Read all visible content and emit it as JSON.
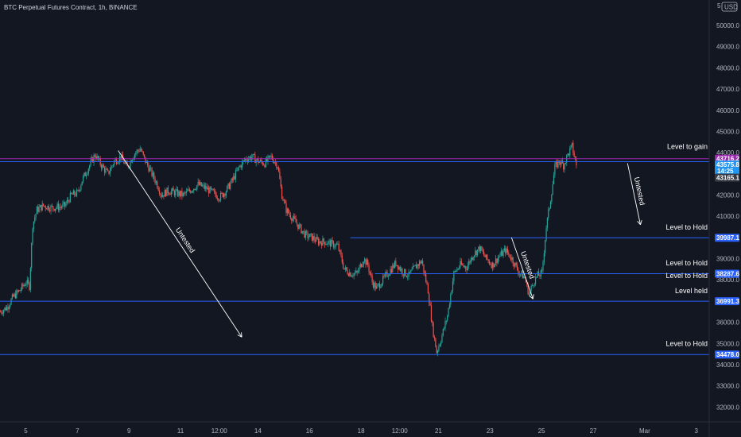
{
  "chart_data": {
    "type": "candlestick",
    "title": "BTC Perpetual Futures Contract, 1h, BINANCE",
    "currency_label": "USD",
    "price_scale_marker": "5",
    "ylim": [
      31300,
      51200
    ],
    "y_ticks": [
      32000,
      33000,
      34000,
      35000,
      36000,
      37000,
      38000,
      39000,
      40000,
      41000,
      42000,
      43000,
      44000,
      45000,
      46000,
      47000,
      48000,
      49000,
      50000
    ],
    "y_tick_labels": [
      "32000.0",
      "33000.0",
      "34000.0",
      "35000.0",
      "36000.0",
      "37000.0",
      "38000.0",
      "39000.0",
      "40000.0",
      "41000.0",
      "42000.0",
      "43000.0",
      "44000.0",
      "45000.0",
      "46000.0",
      "47000.0",
      "48000.0",
      "49000.0",
      "50000.0"
    ],
    "x_range_hours": [
      0,
      660
    ],
    "x_ticks": [
      {
        "label": "5",
        "hour": 24
      },
      {
        "label": "7",
        "hour": 72
      },
      {
        "label": "9",
        "hour": 120
      },
      {
        "label": "11",
        "hour": 168
      },
      {
        "label": "12:00",
        "hour": 204
      },
      {
        "label": "14",
        "hour": 240
      },
      {
        "label": "16",
        "hour": 288
      },
      {
        "label": "18",
        "hour": 336
      },
      {
        "label": "12:00",
        "hour": 372
      },
      {
        "label": "21",
        "hour": 408
      },
      {
        "label": "23",
        "hour": 456
      },
      {
        "label": "25",
        "hour": 504
      },
      {
        "label": "27",
        "hour": 552
      },
      {
        "label": "Mar",
        "hour": 600
      },
      {
        "label": "3",
        "hour": 648
      }
    ],
    "price_path": [
      [
        0,
        36500
      ],
      [
        6,
        36700
      ],
      [
        12,
        37200
      ],
      [
        18,
        37500
      ],
      [
        24,
        37900
      ],
      [
        27,
        37700
      ],
      [
        30,
        40600
      ],
      [
        34,
        41300
      ],
      [
        40,
        41500
      ],
      [
        48,
        41400
      ],
      [
        56,
        41450
      ],
      [
        60,
        41500
      ],
      [
        66,
        42000
      ],
      [
        72,
        42100
      ],
      [
        76,
        42700
      ],
      [
        82,
        43300
      ],
      [
        88,
        43900
      ],
      [
        94,
        43400
      ],
      [
        100,
        43000
      ],
      [
        106,
        43600
      ],
      [
        112,
        43800
      ],
      [
        118,
        43300
      ],
      [
        124,
        43900
      ],
      [
        130,
        44200
      ],
      [
        134,
        43700
      ],
      [
        140,
        43100
      ],
      [
        146,
        42500
      ],
      [
        150,
        42000
      ],
      [
        156,
        42200
      ],
      [
        164,
        42100
      ],
      [
        170,
        42000
      ],
      [
        176,
        42200
      ],
      [
        184,
        42500
      ],
      [
        192,
        42300
      ],
      [
        198,
        42100
      ],
      [
        204,
        41900
      ],
      [
        210,
        42200
      ],
      [
        216,
        42700
      ],
      [
        222,
        43300
      ],
      [
        228,
        43700
      ],
      [
        234,
        43800
      ],
      [
        240,
        43600
      ],
      [
        246,
        43500
      ],
      [
        252,
        43800
      ],
      [
        258,
        43400
      ],
      [
        262,
        42000
      ],
      [
        266,
        41300
      ],
      [
        272,
        40900
      ],
      [
        278,
        40500
      ],
      [
        284,
        40100
      ],
      [
        290,
        40000
      ],
      [
        296,
        39800
      ],
      [
        302,
        39800
      ],
      [
        308,
        39700
      ],
      [
        314,
        39600
      ],
      [
        320,
        38500
      ],
      [
        326,
        38300
      ],
      [
        332,
        38300
      ],
      [
        338,
        39000
      ],
      [
        342,
        38700
      ],
      [
        346,
        37900
      ],
      [
        350,
        37600
      ],
      [
        356,
        38000
      ],
      [
        362,
        38400
      ],
      [
        368,
        38800
      ],
      [
        374,
        38400
      ],
      [
        380,
        38200
      ],
      [
        386,
        38600
      ],
      [
        392,
        38900
      ],
      [
        398,
        37500
      ],
      [
        402,
        35800
      ],
      [
        406,
        34600
      ],
      [
        410,
        35200
      ],
      [
        416,
        36300
      ],
      [
        422,
        38300
      ],
      [
        428,
        38700
      ],
      [
        434,
        38600
      ],
      [
        440,
        39200
      ],
      [
        446,
        39500
      ],
      [
        452,
        39000
      ],
      [
        458,
        38700
      ],
      [
        464,
        39100
      ],
      [
        470,
        39400
      ],
      [
        476,
        39000
      ],
      [
        482,
        38400
      ],
      [
        488,
        38100
      ],
      [
        492,
        37300
      ],
      [
        496,
        37900
      ],
      [
        500,
        38200
      ],
      [
        504,
        38300
      ],
      [
        508,
        40500
      ],
      [
        512,
        41800
      ],
      [
        516,
        43300
      ],
      [
        520,
        43600
      ],
      [
        524,
        43400
      ],
      [
        528,
        43900
      ],
      [
        532,
        44300
      ],
      [
        536,
        43400
      ]
    ],
    "horizontal_levels": [
      {
        "price": 43716.2,
        "color": "#9c27b0",
        "x_start_hour": 0
      },
      {
        "price": 43575.8,
        "color": "#2962ff",
        "x_start_hour": 0
      },
      {
        "price": 39987.1,
        "color": "#2962ff",
        "x_start_hour": 326
      },
      {
        "price": 38287.6,
        "color": "#2962ff",
        "x_start_hour": 349
      },
      {
        "price": 36991.3,
        "color": "#2962ff",
        "x_start_hour": 0
      },
      {
        "price": 34478.0,
        "color": "#2962ff",
        "x_start_hour": 0
      }
    ],
    "price_labels": [
      {
        "text": "43716.2",
        "price": 43716.2,
        "bg": "#9c27b0"
      },
      {
        "text": "43575.8",
        "price": 43440,
        "bg": "#2196f3",
        "sub": "14:25"
      },
      {
        "text": "43165.1",
        "price": 42820,
        "bg": "#363a45"
      },
      {
        "text": "39987.1",
        "price": 39987.1,
        "bg": "#2962ff"
      },
      {
        "text": "38287.6",
        "price": 38287.6,
        "bg": "#2962ff"
      },
      {
        "text": "36991.3",
        "price": 36991.3,
        "bg": "#2962ff"
      },
      {
        "text": "34478.0",
        "price": 34478.0,
        "bg": "#2962ff"
      }
    ],
    "annotations": [
      {
        "text": "Level to gain",
        "price": 44100
      },
      {
        "text": "Level to Hold",
        "price": 40300
      },
      {
        "text": "Level to Hold",
        "price": 38600
      },
      {
        "text": "Level to Hold",
        "price": 38000
      },
      {
        "text": "Level held",
        "price": 37300
      },
      {
        "text": "Level to Hold",
        "price": 34800
      }
    ],
    "arrows": [
      {
        "from": [
          110,
          44100
        ],
        "to": [
          225,
          35300
        ],
        "label": "Untested"
      },
      {
        "from": [
          476,
          40000
        ],
        "to": [
          496,
          37100
        ],
        "label": "Untested"
      },
      {
        "from": [
          584,
          43500
        ],
        "to": [
          596,
          40600
        ],
        "label": "Untested"
      }
    ],
    "colors": {
      "background": "#131722",
      "up": "#26a69a",
      "down": "#ef5350",
      "level": "#2962ff",
      "gain_level": "#9c27b0",
      "text": "#b2b5be",
      "arrow": "#ffffff"
    }
  }
}
